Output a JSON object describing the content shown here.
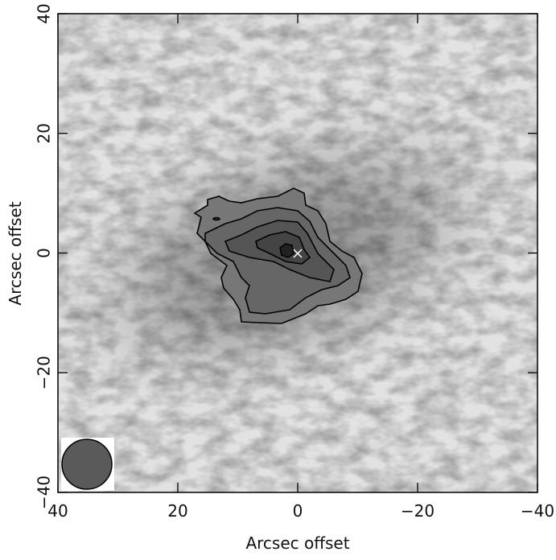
{
  "chart_data": {
    "type": "image",
    "xlabel": "Arcsec offset",
    "ylabel": "Arcsec offset",
    "xlim": [
      40,
      -40
    ],
    "ylim": [
      -40,
      40
    ],
    "xticks": [
      {
        "value": 40,
        "label": "40"
      },
      20,
      0,
      {
        "value": -20,
        "label": "−20"
      },
      {
        "value": -40,
        "label": "−40"
      }
    ],
    "yticks": [
      {
        "value": -40,
        "label": "−40"
      },
      {
        "value": -20,
        "label": "−20"
      },
      0,
      20,
      40
    ]
  }
}
